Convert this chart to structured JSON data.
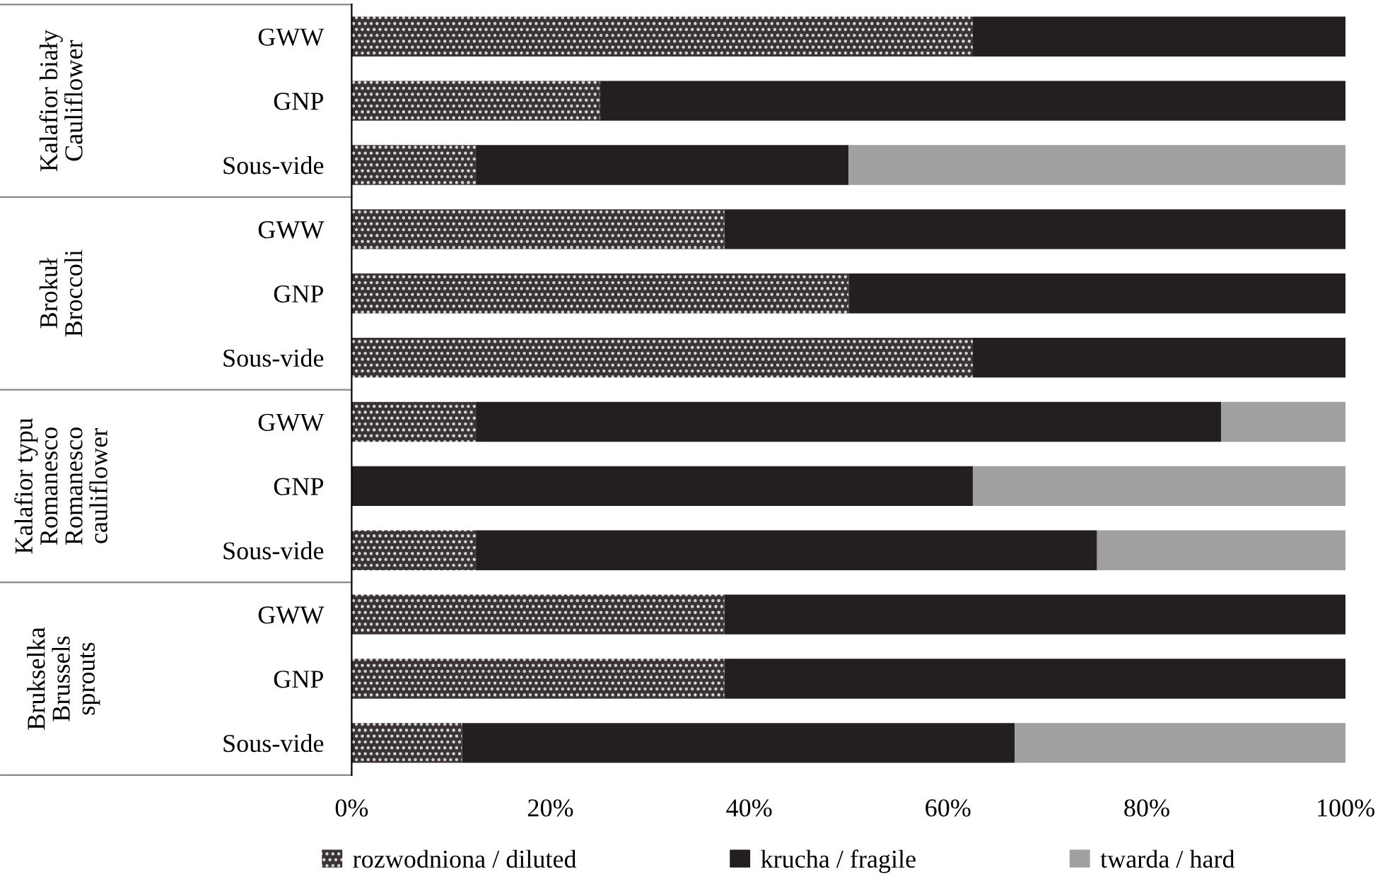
{
  "chart_data": {
    "type": "bar",
    "orientation": "horizontal",
    "stacked": true,
    "categories": [
      "GWW",
      "GNP",
      "Sous-vide",
      "GWW",
      "GNP",
      "Sous-vide",
      "GWW",
      "GNP",
      "Sous-vide",
      "GWW",
      "GNP",
      "Sous-vide"
    ],
    "series": [
      {
        "name": "rozwodniona / diluted",
        "color": "#3b3436",
        "values": [
          62.5,
          25,
          12.5,
          37.5,
          50,
          62.5,
          12.5,
          0,
          12.5,
          37.5,
          37.5,
          11.1
        ]
      },
      {
        "name": "krucha / fragile",
        "color": "#231f20",
        "values": [
          37.5,
          75,
          37.5,
          62.5,
          50,
          37.5,
          75,
          62.5,
          62.5,
          62.5,
          62.5,
          55.6
        ]
      },
      {
        "name": "twarda / hard",
        "color": "#a0a0a2",
        "values": [
          0,
          0,
          50,
          0,
          0,
          0,
          12.5,
          37.5,
          25,
          0,
          0,
          33.3
        ]
      }
    ],
    "xlim": [
      0,
      100
    ],
    "xticks": [
      {
        "value": 0,
        "label": "0%"
      },
      {
        "value": 20,
        "label": "20%"
      },
      {
        "value": 40,
        "label": "40%"
      },
      {
        "value": 60,
        "label": "60%"
      },
      {
        "value": 80,
        "label": "80%"
      },
      {
        "value": 100,
        "label": "100%"
      }
    ],
    "annotations": [
      "Kalafior biały\nCauliflower",
      "Brokuł\nBroccoli",
      "Kalafior typu\nRomanesco\nRomanesco\ncauliflower",
      "Brukselka\nBrussels\nsprouts"
    ],
    "grid": false,
    "legend": "bottom"
  }
}
